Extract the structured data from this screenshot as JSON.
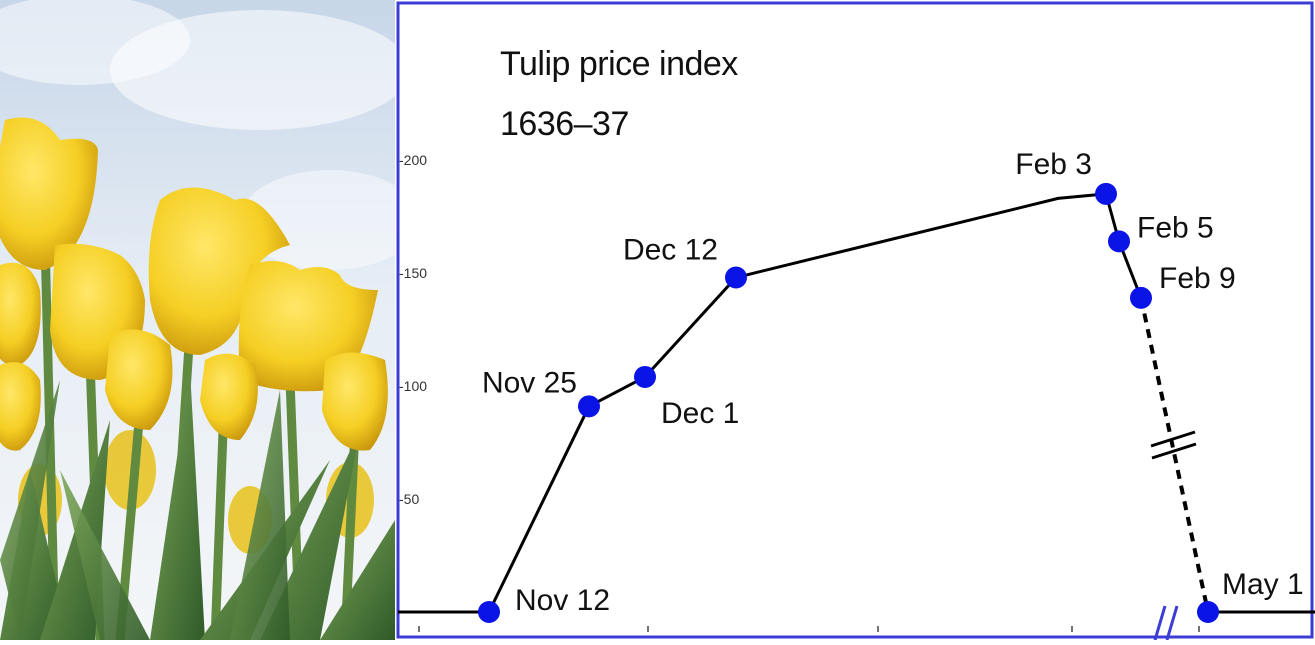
{
  "photo": {
    "subject": "yellow tulips against cloudy sky"
  },
  "chart_data": {
    "type": "line",
    "title_lines": [
      "Tulip price index",
      "1636–37"
    ],
    "ylim": [
      0,
      210
    ],
    "yticks": [
      {
        "value": 200,
        "label": "-200"
      },
      {
        "value": 150,
        "label": "-150"
      },
      {
        "value": 100,
        "label": "-100"
      },
      {
        "value": 50,
        "label": "-50"
      }
    ],
    "points": [
      {
        "label": "Nov 12",
        "value": 0
      },
      {
        "label": "Nov 25",
        "value": 91
      },
      {
        "label": "Dec 1",
        "value": 104
      },
      {
        "label": "Dec 12",
        "value": 148
      },
      {
        "label": "Feb 3",
        "value": 185
      },
      {
        "label": "Feb 5",
        "value": 164
      },
      {
        "label": "Feb 9",
        "value": 139
      },
      {
        "label": "May 1",
        "value": 0
      }
    ],
    "broken_segment": {
      "from": "Feb 9",
      "to": "May 1",
      "style": "dashed with axis break"
    },
    "colors": {
      "line": "#000000",
      "marker": "#0a14e6",
      "frame": "#3b3bd6"
    }
  }
}
